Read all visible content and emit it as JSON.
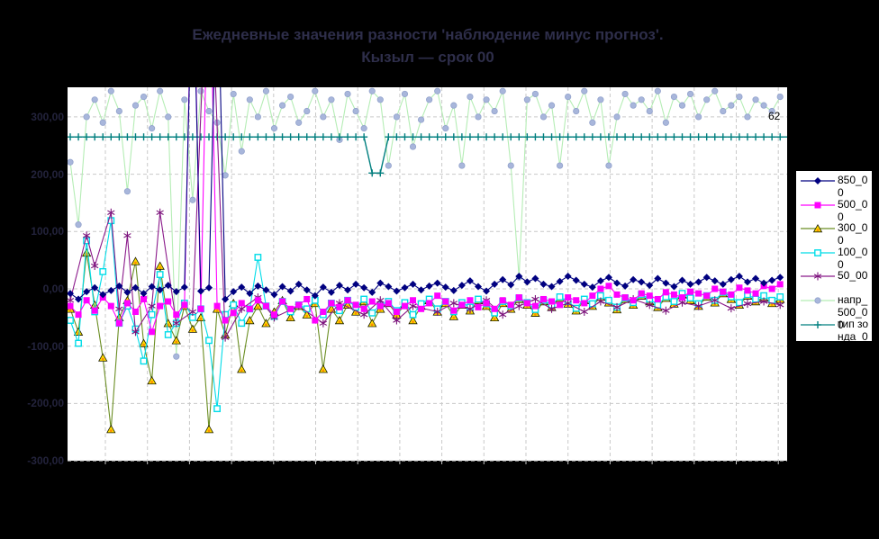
{
  "title": {
    "line1": "Ежедневные значения разности 'наблюдение минус прогноз'.",
    "line2": "Кызыл — срок 00"
  },
  "annotation": {
    "label": "62"
  },
  "colors": {
    "page_bg": "#000000",
    "plot_bg": "#ffffff",
    "grid": "#c9c9c9",
    "title_text": "#2e2e4a",
    "axis_text": "#23233c"
  },
  "chart_data": {
    "type": "line",
    "title": "Ежедневные значения разности 'наблюдение минус прогноз'. Кызыл — срок 00",
    "xlabel": "",
    "ylabel": "",
    "ylim": [
      -300,
      352
    ],
    "grid": "on",
    "legend_position": "right",
    "y_ticks": {
      "values": [
        300,
        200,
        100,
        0,
        -100,
        -200,
        -300
      ],
      "labels": [
        "300,00",
        "200,00",
        "100,00",
        "0,00",
        "-100,00",
        "-200,00",
        "-300,00"
      ]
    },
    "x_point_count": 88,
    "series": [
      {
        "name": "850_00",
        "marker": "diamond",
        "line_color": "#000080",
        "marker_color": "#000080",
        "values": [
          -8,
          -18,
          -5,
          2,
          -10,
          -3,
          5,
          -6,
          2,
          -8,
          4,
          -2,
          6,
          -5,
          3,
          600,
          -4,
          2,
          600,
          -18,
          -5,
          3,
          -8,
          5,
          -2,
          -10,
          4,
          -4,
          8,
          -2,
          -12,
          3,
          -6,
          6,
          -2,
          8,
          2,
          -6,
          10,
          4,
          -4,
          2,
          8,
          -2,
          5,
          10,
          3,
          -3,
          6,
          14,
          4,
          -4,
          8,
          16,
          7,
          22,
          12,
          18,
          8,
          4,
          13,
          22,
          15,
          8,
          3,
          14,
          20,
          10,
          5,
          16,
          12,
          6,
          18,
          10,
          4,
          15,
          8,
          12,
          20,
          14,
          8,
          16,
          22,
          12,
          18,
          10,
          15,
          20
        ]
      },
      {
        "name": "500_00",
        "marker": "square",
        "line_color": "#ff00ff",
        "marker_color": "#ff00ff",
        "values": [
          -30,
          -45,
          -20,
          -38,
          -15,
          -30,
          -60,
          -25,
          -40,
          -18,
          -75,
          -30,
          -22,
          -45,
          -28,
          650,
          -35,
          650,
          -30,
          -55,
          -42,
          -25,
          -35,
          -20,
          -30,
          -45,
          -22,
          -35,
          -28,
          -18,
          -55,
          -40,
          -25,
          -32,
          -20,
          -28,
          -35,
          -22,
          -30,
          -25,
          -40,
          -30,
          -20,
          -35,
          -25,
          -12,
          -22,
          -38,
          -28,
          -20,
          -32,
          -25,
          -35,
          -20,
          -28,
          -15,
          -25,
          -30,
          -18,
          -22,
          -28,
          -15,
          -20,
          -25,
          -12,
          0,
          5,
          -10,
          -15,
          -20,
          -8,
          -12,
          -18,
          -6,
          -10,
          -15,
          -5,
          -8,
          -12,
          0,
          -5,
          -10,
          2,
          -3,
          -8,
          5,
          0,
          8
        ]
      },
      {
        "name": "300_00",
        "marker": "triangle",
        "line_color": "#6b8e23",
        "marker_color": "#ffe000",
        "values": [
          -35,
          -75,
          63,
          -28,
          -120,
          -245,
          -50,
          -20,
          48,
          -95,
          -160,
          40,
          -60,
          -90,
          -30,
          -70,
          -50,
          -245,
          -35,
          -80,
          -25,
          -140,
          -55,
          -30,
          -60,
          -40,
          -20,
          -50,
          -30,
          -45,
          -25,
          -140,
          -35,
          -55,
          -28,
          -40,
          -22,
          -60,
          -35,
          -25,
          -45,
          -28,
          -55,
          -30,
          -20,
          -40,
          -25,
          -48,
          -28,
          -38,
          -20,
          -30,
          -50,
          -25,
          -35,
          -18,
          -28,
          -42,
          -22,
          -32,
          -16,
          -26,
          -38,
          -20,
          -30,
          -14,
          -24,
          -36,
          -18,
          -28,
          -12,
          -22,
          -32,
          -16,
          -26,
          -10,
          -20,
          -30,
          -14,
          -24,
          -8,
          -18,
          -28,
          -12,
          -22,
          -15,
          -25,
          -18
        ]
      },
      {
        "name": "100_00",
        "marker": "osquare",
        "line_color": "#00dce8",
        "marker_color": "#00dce8",
        "values": [
          -55,
          -95,
          84,
          -40,
          30,
          119,
          -60,
          -30,
          -70,
          -126,
          -45,
          25,
          -80,
          -60,
          -25,
          -50,
          -35,
          -90,
          -209,
          -45,
          -28,
          -60,
          -35,
          55,
          -30,
          -48,
          -22,
          -40,
          -28,
          -35,
          -20,
          -45,
          -25,
          -38,
          -20,
          -32,
          -18,
          -42,
          -28,
          -22,
          -38,
          -24,
          -45,
          -26,
          -18,
          -35,
          -22,
          -40,
          -24,
          -32,
          -18,
          -26,
          -42,
          -22,
          -30,
          -16,
          -24,
          -36,
          -20,
          -28,
          -14,
          -22,
          -34,
          -18,
          -26,
          -12,
          -20,
          -32,
          -16,
          -24,
          -10,
          -18,
          -28,
          -14,
          -22,
          -8,
          -16,
          -26,
          -12,
          -20,
          -6,
          -14,
          -24,
          -10,
          -18,
          -12,
          -20,
          -14
        ]
      },
      {
        "name": "50_00",
        "marker": "asterisk",
        "line_color": "#8b1a8b",
        "marker_color": "#7b127b",
        "values": [
          -20,
          null,
          93,
          40,
          null,
          133,
          -35,
          93,
          -75,
          null,
          -30,
          133,
          null,
          -60,
          null,
          -40,
          null,
          650,
          null,
          -85,
          null,
          -35,
          null,
          -15,
          null,
          -50,
          null,
          null,
          -30,
          null,
          null,
          -60,
          null,
          -25,
          null,
          null,
          -45,
          null,
          -20,
          null,
          -55,
          null,
          -30,
          null,
          null,
          -40,
          null,
          -25,
          null,
          -35,
          null,
          -20,
          null,
          -45,
          null,
          -30,
          null,
          -18,
          null,
          -35,
          null,
          -25,
          null,
          -40,
          null,
          -22,
          null,
          -32,
          null,
          -18,
          null,
          -28,
          null,
          -38,
          null,
          -24,
          null,
          -30,
          null,
          -20,
          null,
          -34,
          null,
          -26,
          null,
          -22,
          null,
          -28
        ]
      },
      {
        "name": "напр_500_00",
        "marker": "circle",
        "line_color": "#b5edb5",
        "marker_color": "#a8b6db",
        "values": [
          221,
          112,
          300,
          330,
          290,
          345,
          310,
          170,
          320,
          335,
          280,
          345,
          300,
          -118,
          330,
          155,
          345,
          310,
          290,
          198,
          340,
          240,
          330,
          300,
          345,
          280,
          320,
          335,
          290,
          310,
          345,
          300,
          330,
          260,
          340,
          310,
          280,
          345,
          330,
          215,
          300,
          340,
          248,
          295,
          330,
          345,
          280,
          320,
          215,
          335,
          300,
          330,
          310,
          345,
          215,
          20,
          330,
          340,
          300,
          320,
          215,
          335,
          310,
          345,
          290,
          330,
          215,
          300,
          340,
          320,
          330,
          310,
          345,
          290,
          335,
          320,
          340,
          300,
          330,
          345,
          310,
          320,
          335,
          300,
          330,
          320,
          310,
          335
        ]
      },
      {
        "name": "тип зонда_00",
        "marker": "plus",
        "line_color": "#007f7f",
        "marker_color": "#007f7f",
        "extend_right": true,
        "values": [
          265,
          265,
          265,
          265,
          265,
          265,
          265,
          265,
          265,
          265,
          265,
          265,
          265,
          265,
          265,
          265,
          265,
          265,
          265,
          265,
          265,
          265,
          265,
          265,
          265,
          265,
          265,
          265,
          265,
          265,
          265,
          265,
          265,
          265,
          265,
          265,
          265,
          202,
          202,
          265,
          265,
          265,
          265,
          265,
          265,
          265,
          265,
          265,
          265,
          265,
          265,
          265,
          265,
          265,
          265,
          265,
          265,
          265,
          265,
          265,
          265,
          265,
          265,
          265,
          265,
          265,
          265,
          265,
          265,
          265,
          265,
          265,
          265,
          265,
          265,
          265,
          265,
          265,
          265,
          265,
          265,
          265,
          265,
          265,
          265,
          265,
          265,
          265
        ]
      }
    ]
  }
}
